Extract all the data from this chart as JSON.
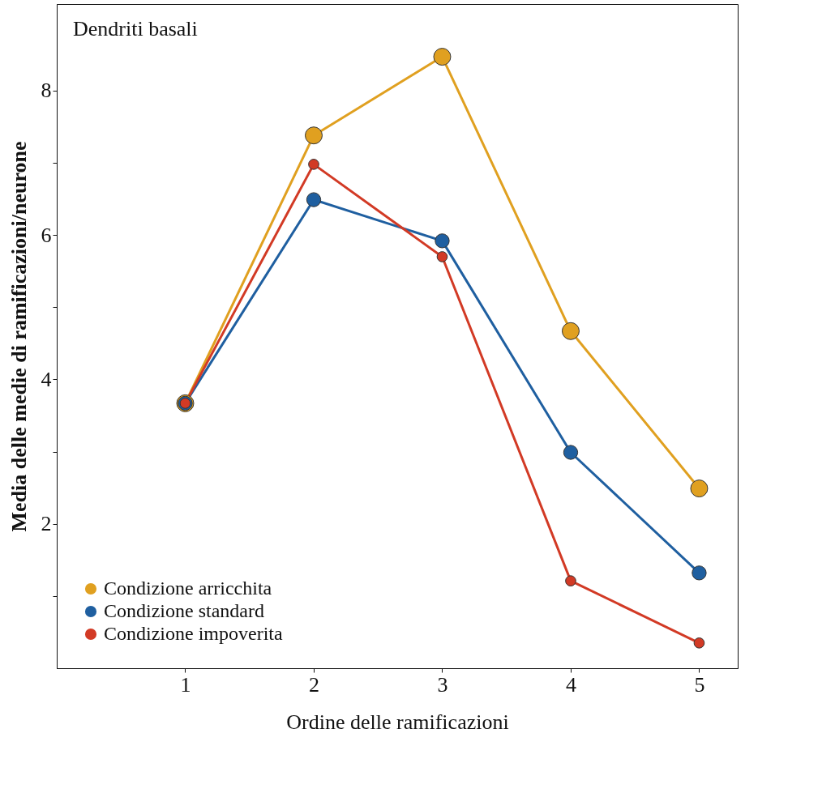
{
  "chart_data": {
    "type": "line",
    "title": "Dendriti basali",
    "xlabel": "Ordine delle ramificazioni",
    "ylabel": "Media delle medie di ramificazioni/neurone",
    "x": [
      1,
      2,
      3,
      4,
      5
    ],
    "series": [
      {
        "name": "Condizione arricchita",
        "color": "#e0a020",
        "values": [
          3.67,
          7.38,
          8.47,
          4.67,
          2.49
        ]
      },
      {
        "name": "Condizione standard",
        "color": "#1f5fa0",
        "values": [
          3.67,
          6.49,
          5.92,
          2.99,
          1.32
        ]
      },
      {
        "name": "Condizione impoverita",
        "color": "#d23a25",
        "values": [
          3.67,
          6.98,
          5.7,
          1.21,
          0.35
        ]
      }
    ],
    "xlim": [
      0,
      5.3
    ],
    "xticks": [
      1,
      2,
      3,
      4,
      5
    ],
    "ylim": [
      0,
      9.2
    ],
    "yticks": [
      {
        "value": 1,
        "label": null
      },
      2,
      {
        "value": 3,
        "label": null
      },
      4,
      {
        "value": 5,
        "label": null
      },
      6,
      {
        "value": 7,
        "label": null
      },
      8
    ],
    "grid": false,
    "legend": "bottom left",
    "marker": "circle",
    "line_style": "solid"
  }
}
